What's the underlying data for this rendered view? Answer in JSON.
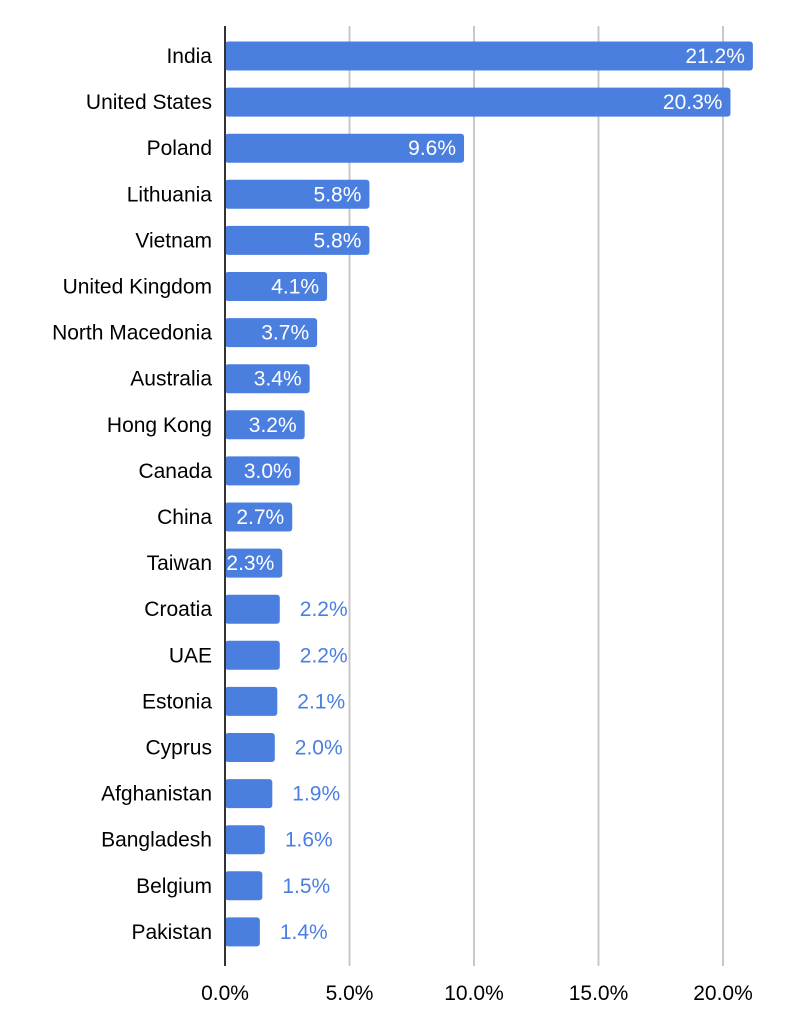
{
  "chart_data": {
    "type": "bar",
    "orientation": "horizontal",
    "categories": [
      "India",
      "United States",
      "Poland",
      "Lithuania",
      "Vietnam",
      "United Kingdom",
      "North Macedonia",
      "Australia",
      "Hong Kong",
      "Canada",
      "China",
      "Taiwan",
      "Croatia",
      "UAE",
      "Estonia",
      "Cyprus",
      "Afghanistan",
      "Bangladesh",
      "Belgium",
      "Pakistan"
    ],
    "values": [
      21.2,
      20.3,
      9.6,
      5.8,
      5.8,
      4.1,
      3.7,
      3.4,
      3.2,
      3.0,
      2.7,
      2.3,
      2.2,
      2.2,
      2.1,
      2.0,
      1.9,
      1.6,
      1.5,
      1.4
    ],
    "data_labels": [
      "21.2%",
      "20.3%",
      "9.6%",
      "5.8%",
      "5.8%",
      "4.1%",
      "3.7%",
      "3.4%",
      "3.2%",
      "3.0%",
      "2.7%",
      "2.3%",
      "2.2%",
      "2.2%",
      "2.1%",
      "2.0%",
      "1.9%",
      "1.6%",
      "1.5%",
      "1.4%"
    ],
    "x_ticks": [
      0,
      5,
      10,
      15,
      20
    ],
    "x_tick_labels": [
      "0.0%",
      "5.0%",
      "10.0%",
      "15.0%",
      "20.0%"
    ],
    "xlim": [
      0,
      21.5
    ],
    "title": "",
    "xlabel": "",
    "ylabel": "",
    "grid": "vertical",
    "legend": "none",
    "bar_color": "#4a7fe0",
    "label_inside_color": "#ffffff",
    "label_outside_color": "#4a7fe0"
  }
}
